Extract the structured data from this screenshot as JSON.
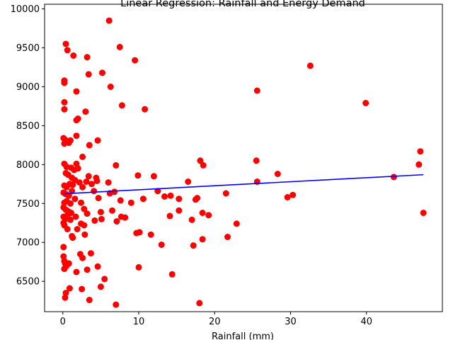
{
  "chart_data": {
    "type": "scatter",
    "title": "Linear Regression: Rainfall and Energy Demand",
    "xlabel": "Rainfall (mm)",
    "ylabel": "",
    "xlim": [
      -2.4,
      50.0
    ],
    "ylim": [
      6110,
      10060
    ],
    "xticks": [
      0,
      10,
      20,
      30,
      40
    ],
    "yticks": [
      6500,
      7000,
      7500,
      8000,
      8500,
      9000,
      9500,
      10000
    ],
    "grid": false,
    "point_color": "#ff0000",
    "line_color": "#0000ff",
    "points": [
      [
        0.4,
        9550
      ],
      [
        0.6,
        9470
      ],
      [
        1.4,
        9400
      ],
      [
        3.2,
        9380
      ],
      [
        6.1,
        9850
      ],
      [
        7.5,
        9510
      ],
      [
        9.5,
        9340
      ],
      [
        0.2,
        9080
      ],
      [
        0.2,
        9050
      ],
      [
        1.8,
        8940
      ],
      [
        3.4,
        9160
      ],
      [
        5.2,
        9180
      ],
      [
        6.3,
        9000
      ],
      [
        0.2,
        8800
      ],
      [
        0.2,
        8710
      ],
      [
        3.0,
        8680
      ],
      [
        1.8,
        8570
      ],
      [
        2.0,
        8590
      ],
      [
        7.8,
        8760
      ],
      [
        10.8,
        8710
      ],
      [
        0.1,
        8340
      ],
      [
        0.3,
        8320
      ],
      [
        1.0,
        8310
      ],
      [
        1.8,
        8370
      ],
      [
        3.5,
        8250
      ],
      [
        4.6,
        8310
      ],
      [
        0.2,
        8270
      ],
      [
        0.8,
        8280
      ],
      [
        0.2,
        8010
      ],
      [
        0.5,
        7970
      ],
      [
        1.1,
        7960
      ],
      [
        1.5,
        7930
      ],
      [
        1.8,
        8010
      ],
      [
        2.6,
        8100
      ],
      [
        7.0,
        7990
      ],
      [
        0.4,
        7890
      ],
      [
        0.7,
        7870
      ],
      [
        1.2,
        7830
      ],
      [
        1.6,
        7800
      ],
      [
        2.0,
        7950
      ],
      [
        3.1,
        7780
      ],
      [
        3.4,
        7850
      ],
      [
        4.4,
        7830
      ],
      [
        0.2,
        7730
      ],
      [
        0.5,
        7710
      ],
      [
        0.9,
        7750
      ],
      [
        1.3,
        7740
      ],
      [
        2.2,
        7770
      ],
      [
        3.8,
        7750
      ],
      [
        4.5,
        7790
      ],
      [
        6.0,
        7770
      ],
      [
        0.1,
        7640
      ],
      [
        0.4,
        7620
      ],
      [
        0.8,
        7600
      ],
      [
        1.2,
        7660
      ],
      [
        2.6,
        7710
      ],
      [
        4.1,
        7660
      ],
      [
        6.2,
        7630
      ],
      [
        6.8,
        7650
      ],
      [
        0.2,
        7510
      ],
      [
        0.5,
        7530
      ],
      [
        1.0,
        7500
      ],
      [
        1.6,
        7560
      ],
      [
        2.4,
        7510
      ],
      [
        4.7,
        7570
      ],
      [
        7.6,
        7540
      ],
      [
        9.0,
        7510
      ],
      [
        0.1,
        7450
      ],
      [
        0.4,
        7420
      ],
      [
        0.7,
        7400
      ],
      [
        1.1,
        7380
      ],
      [
        1.7,
        7330
      ],
      [
        2.8,
        7430
      ],
      [
        5.0,
        7390
      ],
      [
        6.5,
        7410
      ],
      [
        0.1,
        7330
      ],
      [
        0.3,
        7300
      ],
      [
        0.6,
        7350
      ],
      [
        1.0,
        7290
      ],
      [
        3.2,
        7370
      ],
      [
        4.2,
        7280
      ],
      [
        5.1,
        7300
      ],
      [
        7.1,
        7270
      ],
      [
        7.7,
        7330
      ],
      [
        0.1,
        7250
      ],
      [
        0.2,
        7220
      ],
      [
        0.6,
        7170
      ],
      [
        1.2,
        7080
      ],
      [
        1.9,
        7170
      ],
      [
        2.4,
        7240
      ],
      [
        2.8,
        7220
      ],
      [
        8.2,
        7320
      ],
      [
        0.1,
        6940
      ],
      [
        1.3,
        7060
      ],
      [
        2.9,
        7100
      ],
      [
        9.7,
        7120
      ],
      [
        10.1,
        7130
      ],
      [
        11.6,
        7100
      ],
      [
        13.0,
        6970
      ],
      [
        0.1,
        6820
      ],
      [
        0.2,
        6760
      ],
      [
        0.3,
        6730
      ],
      [
        0.5,
        6700
      ],
      [
        0.8,
        6730
      ],
      [
        2.3,
        6850
      ],
      [
        2.6,
        6800
      ],
      [
        3.7,
        6860
      ],
      [
        0.2,
        6660
      ],
      [
        1.8,
        6620
      ],
      [
        3.2,
        6650
      ],
      [
        4.6,
        6690
      ],
      [
        10.0,
        6680
      ],
      [
        0.4,
        6350
      ],
      [
        0.3,
        6290
      ],
      [
        0.9,
        6410
      ],
      [
        2.5,
        6400
      ],
      [
        3.5,
        6260
      ],
      [
        5.0,
        6430
      ],
      [
        5.5,
        6530
      ],
      [
        7.0,
        6200
      ],
      [
        10.6,
        7560
      ],
      [
        12.0,
        7850
      ],
      [
        9.9,
        7860
      ],
      [
        12.5,
        7660
      ],
      [
        13.4,
        7590
      ],
      [
        14.2,
        7600
      ],
      [
        15.3,
        7560
      ],
      [
        14.1,
        7340
      ],
      [
        15.3,
        7410
      ],
      [
        16.5,
        7780
      ],
      [
        17.0,
        7290
      ],
      [
        17.5,
        7550
      ],
      [
        17.7,
        7570
      ],
      [
        18.1,
        8050
      ],
      [
        18.5,
        7990
      ],
      [
        18.4,
        7380
      ],
      [
        19.2,
        7350
      ],
      [
        17.2,
        6960
      ],
      [
        18.4,
        7040
      ],
      [
        21.5,
        7630
      ],
      [
        21.7,
        7070
      ],
      [
        22.9,
        7240
      ],
      [
        14.4,
        6590
      ],
      [
        18.0,
        6220
      ],
      [
        25.5,
        8050
      ],
      [
        25.6,
        8950
      ],
      [
        25.6,
        7780
      ],
      [
        28.3,
        7880
      ],
      [
        29.6,
        7580
      ],
      [
        30.3,
        7610
      ],
      [
        32.6,
        9270
      ],
      [
        39.9,
        8790
      ],
      [
        43.6,
        7840
      ],
      [
        46.9,
        8000
      ],
      [
        47.1,
        8170
      ],
      [
        47.5,
        7380
      ]
    ],
    "regression_line": {
      "x": [
        0.1,
        47.5
      ],
      "y": [
        7625,
        7870
      ]
    }
  }
}
